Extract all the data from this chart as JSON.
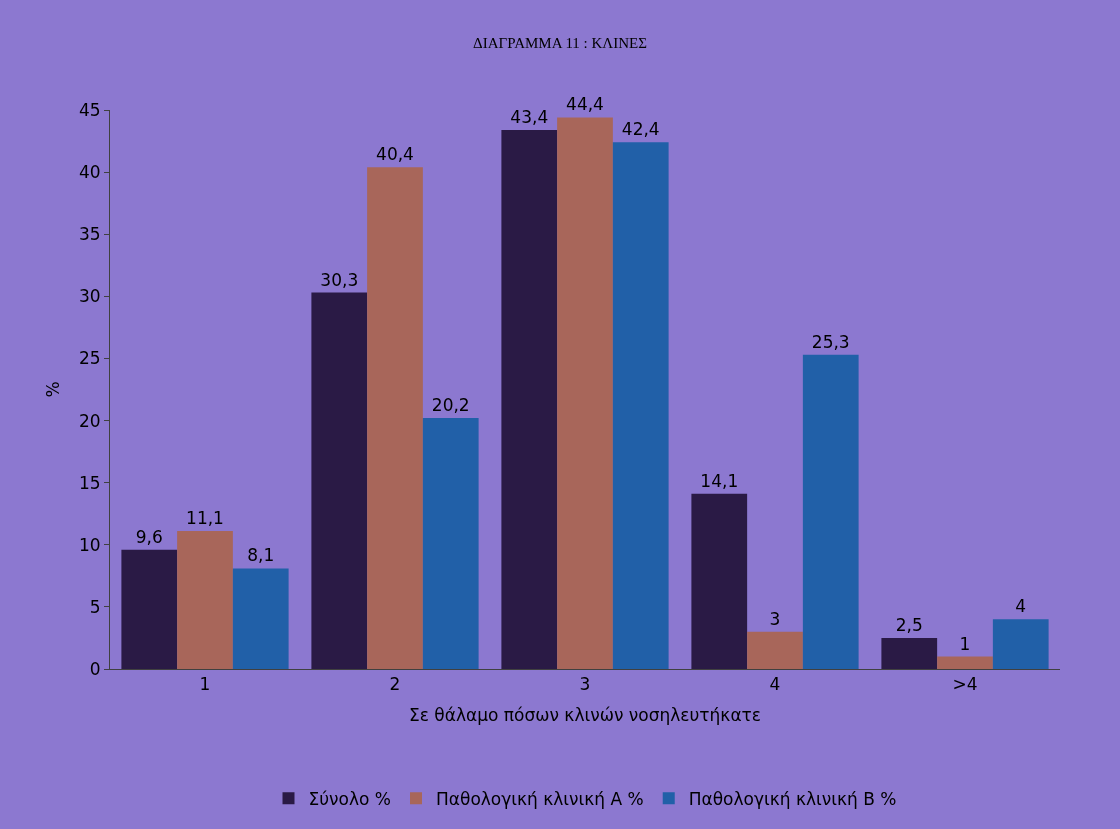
{
  "chart_data": {
    "type": "bar",
    "title": "ΔΙΑΓΡΑΜΜΑ 11 : ΚΛΙΝΕΣ",
    "xlabel": "Σε θάλαμο πόσων κλινών νοσηλευτήκατε",
    "ylabel": "%",
    "categories": [
      "1",
      "2",
      "3",
      "4",
      ">4"
    ],
    "series": [
      {
        "name": "Σύνολο %",
        "color": "#2a1a45",
        "values": [
          9.6,
          30.3,
          43.4,
          14.1,
          2.5
        ],
        "value_labels": [
          "9,6",
          "30,3",
          "43,4",
          "14,1",
          "2,5"
        ]
      },
      {
        "name": "Παθολογική κλινική Α %",
        "color": "#a8665a",
        "values": [
          11.1,
          40.4,
          44.4,
          3,
          1
        ],
        "value_labels": [
          "11,1",
          "40,4",
          "44,4",
          "3",
          "1"
        ]
      },
      {
        "name": "Παθολογική κλινική Β %",
        "color": "#2160a8",
        "values": [
          8.1,
          20.2,
          42.4,
          25.3,
          4
        ],
        "value_labels": [
          "8,1",
          "20,2",
          "42,4",
          "25,3",
          "4"
        ]
      }
    ],
    "ylim": [
      0,
      45
    ],
    "yticks": [
      0,
      5,
      10,
      15,
      20,
      25,
      30,
      35,
      40,
      45
    ],
    "grid": false,
    "legend": "bottom"
  }
}
